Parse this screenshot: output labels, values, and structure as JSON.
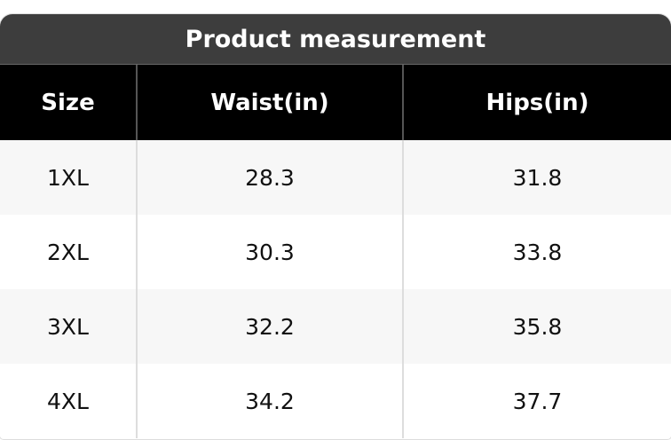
{
  "table": {
    "title": "Product measurement",
    "header": [
      "Size",
      "Waist(in)",
      "Hips(in)"
    ],
    "rows": [
      [
        "1XL",
        28.3,
        31.8
      ],
      [
        "2XL",
        30.3,
        33.8
      ],
      [
        "3XL",
        32.2,
        35.8
      ],
      [
        "4XL",
        34.2,
        37.7
      ]
    ]
  }
}
